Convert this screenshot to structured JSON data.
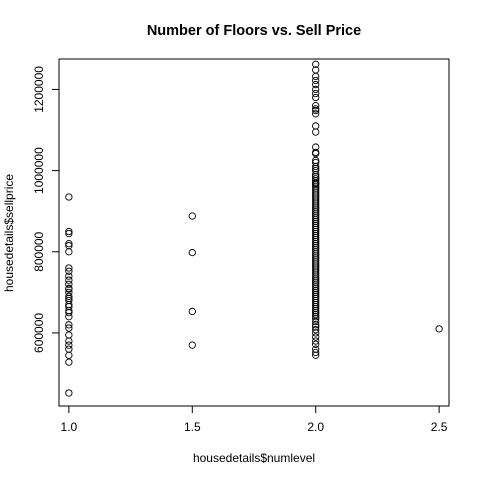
{
  "chart_data": {
    "type": "scatter",
    "title": "Number of Floors vs. Sell Price",
    "xlabel": "housedetails$numlevel",
    "ylabel": "housedetails$sellprice",
    "xlim": [
      0.96,
      2.54
    ],
    "ylim": [
      420000,
      1275000
    ],
    "xticks": [
      1.0,
      1.5,
      2.0,
      2.5
    ],
    "xtick_labels": [
      "1.0",
      "1.5",
      "2.0",
      "2.5"
    ],
    "yticks": [
      600000,
      800000,
      1000000,
      1200000
    ],
    "ytick_labels": [
      "600000",
      "800000",
      "1000000",
      "1200000"
    ],
    "grid": false,
    "legend": "none",
    "marker": "open-circle",
    "series": [
      {
        "x": [
          1,
          1,
          1,
          1,
          1,
          1,
          1,
          1,
          1,
          1,
          1,
          1,
          1,
          1,
          1,
          1,
          1,
          1,
          1,
          1,
          1,
          1,
          1,
          1,
          1,
          1,
          1,
          1,
          1,
          1,
          1,
          1.5,
          1.5,
          1.5,
          1.5,
          2,
          2,
          2,
          2,
          2,
          2,
          2,
          2,
          2,
          2,
          2,
          2,
          2,
          2,
          2,
          2,
          2,
          2,
          2,
          2,
          2,
          2,
          2,
          2,
          2,
          2,
          2,
          2,
          2,
          2,
          2,
          2,
          2,
          2,
          2,
          2,
          2,
          2,
          2,
          2,
          2,
          2,
          2,
          2,
          2,
          2,
          2,
          2,
          2,
          2,
          2,
          2,
          2,
          2,
          2,
          2,
          2,
          2,
          2,
          2,
          2,
          2,
          2,
          2,
          2,
          2,
          2,
          2,
          2,
          2,
          2,
          2,
          2,
          2,
          2,
          2,
          2,
          2,
          2,
          2,
          2,
          2,
          2,
          2,
          2,
          2,
          2,
          2,
          2,
          2,
          2,
          2,
          2,
          2,
          2,
          2,
          2,
          2,
          2,
          2,
          2,
          2,
          2,
          2,
          2,
          2,
          2.5
        ],
        "y": [
          452000,
          528000,
          545000,
          560000,
          570000,
          580000,
          595000,
          640000,
          650000,
          655000,
          670000,
          680000,
          690000,
          700000,
          708000,
          720000,
          730000,
          740000,
          752000,
          760000,
          800000,
          815000,
          820000,
          845000,
          850000,
          935000,
          620000,
          612000,
          665000,
          685000,
          710000,
          570000,
          653000,
          798000,
          888000,
          545000,
          552000,
          560000,
          572000,
          580000,
          590000,
          600000,
          608000,
          615000,
          620000,
          628000,
          635000,
          640000,
          645000,
          650000,
          655000,
          660000,
          665000,
          670000,
          675000,
          680000,
          685000,
          690000,
          695000,
          700000,
          705000,
          710000,
          715000,
          720000,
          725000,
          730000,
          735000,
          740000,
          745000,
          750000,
          755000,
          760000,
          765000,
          770000,
          775000,
          780000,
          785000,
          790000,
          795000,
          800000,
          805000,
          810000,
          815000,
          820000,
          825000,
          830000,
          835000,
          840000,
          845000,
          850000,
          855000,
          860000,
          865000,
          870000,
          875000,
          880000,
          885000,
          890000,
          895000,
          900000,
          905000,
          910000,
          915000,
          920000,
          925000,
          930000,
          935000,
          940000,
          945000,
          950000,
          955000,
          960000,
          965000,
          970000,
          975000,
          980000,
          990000,
          1000000,
          1010000,
          1020000,
          1045000,
          1058000,
          1095000,
          1110000,
          1140000,
          1148000,
          1160000,
          1180000,
          1200000,
          1222000,
          1248000,
          1262000,
          1232000,
          1212000,
          1190000,
          1152000,
          1042000,
          1025000,
          1005000,
          985000,
          968000,
          610000
        ]
      }
    ]
  }
}
